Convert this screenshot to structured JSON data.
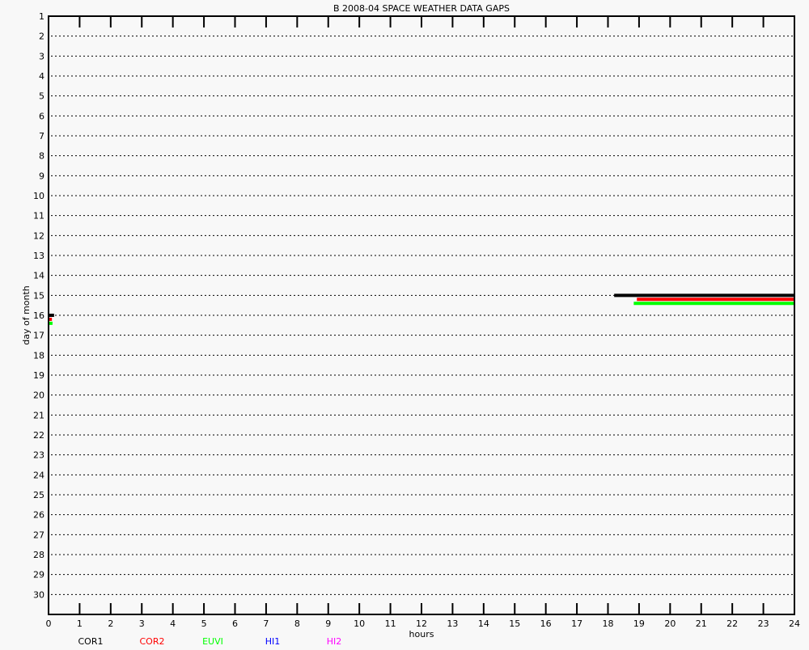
{
  "chart_data": {
    "type": "timeline",
    "title": "B  2008-04 SPACE WEATHER DATA GAPS",
    "xlabel": "hours",
    "ylabel": "day of month",
    "xlim": [
      0,
      24
    ],
    "ylim": [
      1,
      31
    ],
    "x_ticks": [
      0,
      1,
      2,
      3,
      4,
      5,
      6,
      7,
      8,
      9,
      10,
      11,
      12,
      13,
      14,
      15,
      16,
      17,
      18,
      19,
      20,
      21,
      22,
      23,
      24
    ],
    "y_ticks": [
      1,
      2,
      3,
      4,
      5,
      6,
      7,
      8,
      9,
      10,
      11,
      12,
      13,
      14,
      15,
      16,
      17,
      18,
      19,
      20,
      21,
      22,
      23,
      24,
      25,
      26,
      27,
      28,
      29,
      30
    ],
    "grid": "dotted horizontal",
    "legend_placement": "bottom",
    "series": [
      {
        "name": "COR1",
        "color": "#000000",
        "offset": 0.0,
        "gaps": [
          {
            "day": 15,
            "start": 18.2,
            "end": 24
          },
          {
            "day": 16,
            "start": 0,
            "end": 0.1
          }
        ]
      },
      {
        "name": "COR2",
        "color": "#ff0000",
        "offset": 0.2,
        "gaps": [
          {
            "day": 15,
            "start": 18.93,
            "end": 24
          },
          {
            "day": 16,
            "start": 0,
            "end": 0.03
          }
        ]
      },
      {
        "name": "EUVI",
        "color": "#00ff00",
        "offset": 0.4,
        "gaps": [
          {
            "day": 15,
            "start": 18.83,
            "end": 24
          },
          {
            "day": 16,
            "start": 0,
            "end": 0.05
          }
        ]
      },
      {
        "name": "HI1",
        "color": "#0000ff",
        "offset": 0.6,
        "gaps": []
      },
      {
        "name": "HI2",
        "color": "#ff00ff",
        "offset": 0.8,
        "gaps": []
      }
    ]
  }
}
